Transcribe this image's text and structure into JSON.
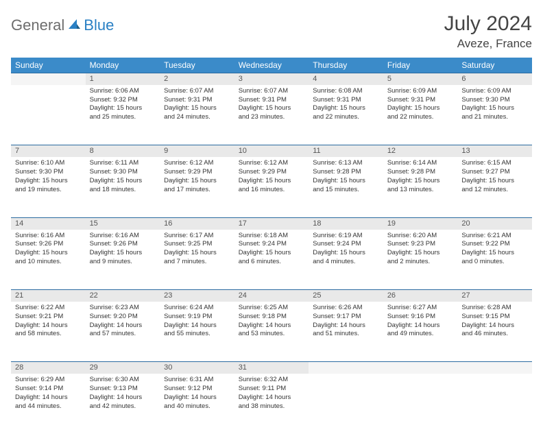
{
  "logo": {
    "part1": "General",
    "part2": "Blue"
  },
  "title": "July 2024",
  "location": "Aveze, France",
  "colors": {
    "header_bg": "#3b8bc9",
    "header_text": "#ffffff",
    "daynum_bg": "#e9e9e9",
    "border": "#2a6aa0",
    "body_text": "#333333",
    "logo_gray": "#6d6d6d",
    "logo_blue": "#2a80c4"
  },
  "weekdays": [
    "Sunday",
    "Monday",
    "Tuesday",
    "Wednesday",
    "Thursday",
    "Friday",
    "Saturday"
  ],
  "weeks": [
    [
      {
        "n": "",
        "l1": "",
        "l2": "",
        "l3": "",
        "l4": ""
      },
      {
        "n": "1",
        "l1": "Sunrise: 6:06 AM",
        "l2": "Sunset: 9:32 PM",
        "l3": "Daylight: 15 hours",
        "l4": "and 25 minutes."
      },
      {
        "n": "2",
        "l1": "Sunrise: 6:07 AM",
        "l2": "Sunset: 9:31 PM",
        "l3": "Daylight: 15 hours",
        "l4": "and 24 minutes."
      },
      {
        "n": "3",
        "l1": "Sunrise: 6:07 AM",
        "l2": "Sunset: 9:31 PM",
        "l3": "Daylight: 15 hours",
        "l4": "and 23 minutes."
      },
      {
        "n": "4",
        "l1": "Sunrise: 6:08 AM",
        "l2": "Sunset: 9:31 PM",
        "l3": "Daylight: 15 hours",
        "l4": "and 22 minutes."
      },
      {
        "n": "5",
        "l1": "Sunrise: 6:09 AM",
        "l2": "Sunset: 9:31 PM",
        "l3": "Daylight: 15 hours",
        "l4": "and 22 minutes."
      },
      {
        "n": "6",
        "l1": "Sunrise: 6:09 AM",
        "l2": "Sunset: 9:30 PM",
        "l3": "Daylight: 15 hours",
        "l4": "and 21 minutes."
      }
    ],
    [
      {
        "n": "7",
        "l1": "Sunrise: 6:10 AM",
        "l2": "Sunset: 9:30 PM",
        "l3": "Daylight: 15 hours",
        "l4": "and 19 minutes."
      },
      {
        "n": "8",
        "l1": "Sunrise: 6:11 AM",
        "l2": "Sunset: 9:30 PM",
        "l3": "Daylight: 15 hours",
        "l4": "and 18 minutes."
      },
      {
        "n": "9",
        "l1": "Sunrise: 6:12 AM",
        "l2": "Sunset: 9:29 PM",
        "l3": "Daylight: 15 hours",
        "l4": "and 17 minutes."
      },
      {
        "n": "10",
        "l1": "Sunrise: 6:12 AM",
        "l2": "Sunset: 9:29 PM",
        "l3": "Daylight: 15 hours",
        "l4": "and 16 minutes."
      },
      {
        "n": "11",
        "l1": "Sunrise: 6:13 AM",
        "l2": "Sunset: 9:28 PM",
        "l3": "Daylight: 15 hours",
        "l4": "and 15 minutes."
      },
      {
        "n": "12",
        "l1": "Sunrise: 6:14 AM",
        "l2": "Sunset: 9:28 PM",
        "l3": "Daylight: 15 hours",
        "l4": "and 13 minutes."
      },
      {
        "n": "13",
        "l1": "Sunrise: 6:15 AM",
        "l2": "Sunset: 9:27 PM",
        "l3": "Daylight: 15 hours",
        "l4": "and 12 minutes."
      }
    ],
    [
      {
        "n": "14",
        "l1": "Sunrise: 6:16 AM",
        "l2": "Sunset: 9:26 PM",
        "l3": "Daylight: 15 hours",
        "l4": "and 10 minutes."
      },
      {
        "n": "15",
        "l1": "Sunrise: 6:16 AM",
        "l2": "Sunset: 9:26 PM",
        "l3": "Daylight: 15 hours",
        "l4": "and 9 minutes."
      },
      {
        "n": "16",
        "l1": "Sunrise: 6:17 AM",
        "l2": "Sunset: 9:25 PM",
        "l3": "Daylight: 15 hours",
        "l4": "and 7 minutes."
      },
      {
        "n": "17",
        "l1": "Sunrise: 6:18 AM",
        "l2": "Sunset: 9:24 PM",
        "l3": "Daylight: 15 hours",
        "l4": "and 6 minutes."
      },
      {
        "n": "18",
        "l1": "Sunrise: 6:19 AM",
        "l2": "Sunset: 9:24 PM",
        "l3": "Daylight: 15 hours",
        "l4": "and 4 minutes."
      },
      {
        "n": "19",
        "l1": "Sunrise: 6:20 AM",
        "l2": "Sunset: 9:23 PM",
        "l3": "Daylight: 15 hours",
        "l4": "and 2 minutes."
      },
      {
        "n": "20",
        "l1": "Sunrise: 6:21 AM",
        "l2": "Sunset: 9:22 PM",
        "l3": "Daylight: 15 hours",
        "l4": "and 0 minutes."
      }
    ],
    [
      {
        "n": "21",
        "l1": "Sunrise: 6:22 AM",
        "l2": "Sunset: 9:21 PM",
        "l3": "Daylight: 14 hours",
        "l4": "and 58 minutes."
      },
      {
        "n": "22",
        "l1": "Sunrise: 6:23 AM",
        "l2": "Sunset: 9:20 PM",
        "l3": "Daylight: 14 hours",
        "l4": "and 57 minutes."
      },
      {
        "n": "23",
        "l1": "Sunrise: 6:24 AM",
        "l2": "Sunset: 9:19 PM",
        "l3": "Daylight: 14 hours",
        "l4": "and 55 minutes."
      },
      {
        "n": "24",
        "l1": "Sunrise: 6:25 AM",
        "l2": "Sunset: 9:18 PM",
        "l3": "Daylight: 14 hours",
        "l4": "and 53 minutes."
      },
      {
        "n": "25",
        "l1": "Sunrise: 6:26 AM",
        "l2": "Sunset: 9:17 PM",
        "l3": "Daylight: 14 hours",
        "l4": "and 51 minutes."
      },
      {
        "n": "26",
        "l1": "Sunrise: 6:27 AM",
        "l2": "Sunset: 9:16 PM",
        "l3": "Daylight: 14 hours",
        "l4": "and 49 minutes."
      },
      {
        "n": "27",
        "l1": "Sunrise: 6:28 AM",
        "l2": "Sunset: 9:15 PM",
        "l3": "Daylight: 14 hours",
        "l4": "and 46 minutes."
      }
    ],
    [
      {
        "n": "28",
        "l1": "Sunrise: 6:29 AM",
        "l2": "Sunset: 9:14 PM",
        "l3": "Daylight: 14 hours",
        "l4": "and 44 minutes."
      },
      {
        "n": "29",
        "l1": "Sunrise: 6:30 AM",
        "l2": "Sunset: 9:13 PM",
        "l3": "Daylight: 14 hours",
        "l4": "and 42 minutes."
      },
      {
        "n": "30",
        "l1": "Sunrise: 6:31 AM",
        "l2": "Sunset: 9:12 PM",
        "l3": "Daylight: 14 hours",
        "l4": "and 40 minutes."
      },
      {
        "n": "31",
        "l1": "Sunrise: 6:32 AM",
        "l2": "Sunset: 9:11 PM",
        "l3": "Daylight: 14 hours",
        "l4": "and 38 minutes."
      },
      {
        "n": "",
        "l1": "",
        "l2": "",
        "l3": "",
        "l4": ""
      },
      {
        "n": "",
        "l1": "",
        "l2": "",
        "l3": "",
        "l4": ""
      },
      {
        "n": "",
        "l1": "",
        "l2": "",
        "l3": "",
        "l4": ""
      }
    ]
  ]
}
